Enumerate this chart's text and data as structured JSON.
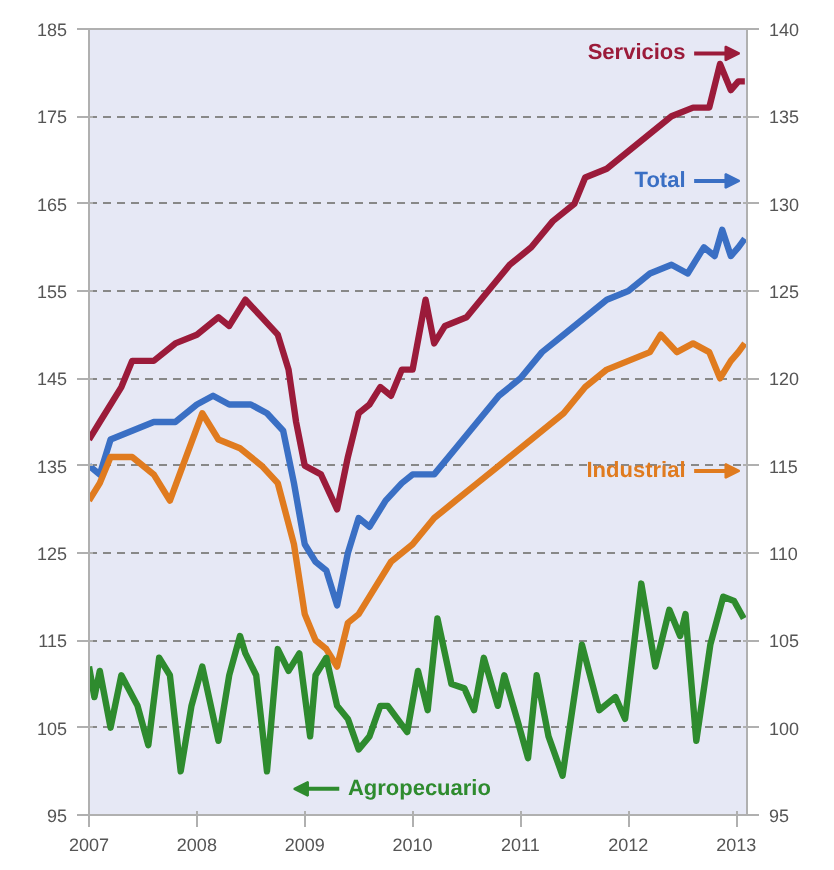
{
  "chart_data": {
    "type": "line",
    "xlim": [
      2007,
      2013.1
    ],
    "xticks": [
      2007,
      2008,
      2009,
      2010,
      2011,
      2012,
      2013
    ],
    "ylim": [
      95,
      185
    ],
    "yticks": [
      95,
      105,
      115,
      125,
      135,
      145,
      155,
      165,
      175,
      185
    ],
    "y2lim": [
      95,
      140
    ],
    "y2ticks": [
      95,
      100,
      105,
      110,
      115,
      120,
      125,
      130,
      135,
      140
    ],
    "grid": "y",
    "legend": "right",
    "line_style": "solid",
    "marker": "none",
    "series": [
      {
        "name": "Servicios",
        "color": "#9b1b3a",
        "axis": "y2",
        "x": [
          2007.0,
          2007.1,
          2007.3,
          2007.4,
          2007.6,
          2007.8,
          2008.0,
          2008.2,
          2008.3,
          2008.45,
          2008.6,
          2008.75,
          2008.85,
          2008.92,
          2009.0,
          2009.15,
          2009.3,
          2009.4,
          2009.5,
          2009.6,
          2009.7,
          2009.8,
          2009.9,
          2010.0,
          2010.12,
          2010.2,
          2010.3,
          2010.5,
          2010.7,
          2010.9,
          2011.1,
          2011.3,
          2011.5,
          2011.6,
          2011.8,
          2012.0,
          2012.2,
          2012.4,
          2012.6,
          2012.75,
          2012.85,
          2012.95,
          2013.02,
          2013.08
        ],
        "values": [
          116.5,
          117.5,
          119.5,
          121,
          121,
          122,
          122.5,
          123.5,
          123,
          124.5,
          123.5,
          122.5,
          120.5,
          117.5,
          115,
          114.5,
          112.5,
          115.5,
          118,
          118.5,
          119.5,
          119,
          120.5,
          120.5,
          124.5,
          122,
          123,
          123.5,
          125,
          126.5,
          127.5,
          129,
          130,
          131.5,
          132,
          133,
          134,
          135,
          135.5,
          135.5,
          138,
          136.5,
          137,
          137
        ]
      },
      {
        "name": "Total",
        "color": "#3a6fc4",
        "axis": "y2",
        "x": [
          2007.0,
          2007.1,
          2007.2,
          2007.4,
          2007.6,
          2007.8,
          2008.0,
          2008.15,
          2008.3,
          2008.5,
          2008.65,
          2008.8,
          2008.9,
          2009.0,
          2009.1,
          2009.2,
          2009.3,
          2009.4,
          2009.5,
          2009.6,
          2009.75,
          2009.9,
          2010.0,
          2010.2,
          2010.4,
          2010.6,
          2010.8,
          2011.0,
          2011.2,
          2011.4,
          2011.6,
          2011.8,
          2012.0,
          2012.2,
          2012.4,
          2012.55,
          2012.7,
          2012.8,
          2012.87,
          2012.95,
          2013.02,
          2013.08
        ],
        "values": [
          115,
          114.5,
          116.5,
          117,
          117.5,
          117.5,
          118.5,
          119,
          118.5,
          118.5,
          118,
          117,
          114,
          110.5,
          109.5,
          109,
          107,
          110,
          112,
          111.5,
          113,
          114,
          114.5,
          114.5,
          116,
          117.5,
          119,
          120,
          121.5,
          122.5,
          123.5,
          124.5,
          125,
          126,
          126.5,
          126,
          127.5,
          127,
          128.5,
          127,
          127.5,
          128
        ]
      },
      {
        "name": "Industrial",
        "color": "#e07b1f",
        "axis": "y2",
        "x": [
          2007.0,
          2007.1,
          2007.2,
          2007.4,
          2007.6,
          2007.75,
          2007.9,
          2008.05,
          2008.2,
          2008.4,
          2008.6,
          2008.75,
          2008.9,
          2009.0,
          2009.1,
          2009.2,
          2009.3,
          2009.4,
          2009.5,
          2009.6,
          2009.8,
          2010.0,
          2010.2,
          2010.4,
          2010.6,
          2010.8,
          2011.0,
          2011.2,
          2011.4,
          2011.6,
          2011.8,
          2012.0,
          2012.2,
          2012.3,
          2012.45,
          2012.6,
          2012.75,
          2012.85,
          2012.95,
          2013.02,
          2013.08
        ],
        "values": [
          113,
          114,
          115.5,
          115.5,
          114.5,
          113,
          115.5,
          118,
          116.5,
          116,
          115,
          114,
          110.5,
          106.5,
          105,
          104.5,
          103.5,
          106,
          106.5,
          107.5,
          109.5,
          110.5,
          112,
          113,
          114,
          115,
          116,
          117,
          118,
          119.5,
          120.5,
          121,
          121.5,
          122.5,
          121.5,
          122,
          121.5,
          120,
          121,
          121.5,
          122
        ]
      },
      {
        "name": "Agropecuario",
        "color": "#2e8b2e",
        "x": [
          2007.0,
          2007.05,
          2007.1,
          2007.2,
          2007.3,
          2007.45,
          2007.55,
          2007.65,
          2007.75,
          2007.85,
          2007.95,
          2008.05,
          2008.2,
          2008.3,
          2008.4,
          2008.45,
          2008.55,
          2008.65,
          2008.75,
          2008.85,
          2008.95,
          2009.05,
          2009.1,
          2009.2,
          2009.3,
          2009.4,
          2009.5,
          2009.6,
          2009.7,
          2009.77,
          2009.95,
          2010.05,
          2010.14,
          2010.23,
          2010.36,
          2010.48,
          2010.57,
          2010.66,
          2010.79,
          2010.85,
          2010.98,
          2011.07,
          2011.15,
          2011.26,
          2011.39,
          2011.57,
          2011.73,
          2011.88,
          2011.97,
          2012.12,
          2012.25,
          2012.38,
          2012.48,
          2012.53,
          2012.63,
          2012.76,
          2012.88,
          2012.98,
          2013.07
        ],
        "values": [
          112,
          108.5,
          111.5,
          105,
          111,
          107.5,
          103,
          113,
          111,
          100,
          107.5,
          112,
          103.5,
          111,
          115.5,
          113.5,
          111,
          100,
          114,
          111.5,
          113.5,
          104,
          111,
          113,
          107.5,
          106,
          102.5,
          104,
          107.5,
          107.5,
          104.5,
          111.5,
          107,
          117.5,
          110,
          109.5,
          107,
          113,
          107.5,
          111,
          105.5,
          101.5,
          111,
          104,
          99.5,
          114.5,
          107,
          108.5,
          106,
          121.5,
          112,
          118.5,
          115.5,
          118,
          103.5,
          114.5,
          120,
          119.5,
          117.5
        ]
      }
    ]
  }
}
